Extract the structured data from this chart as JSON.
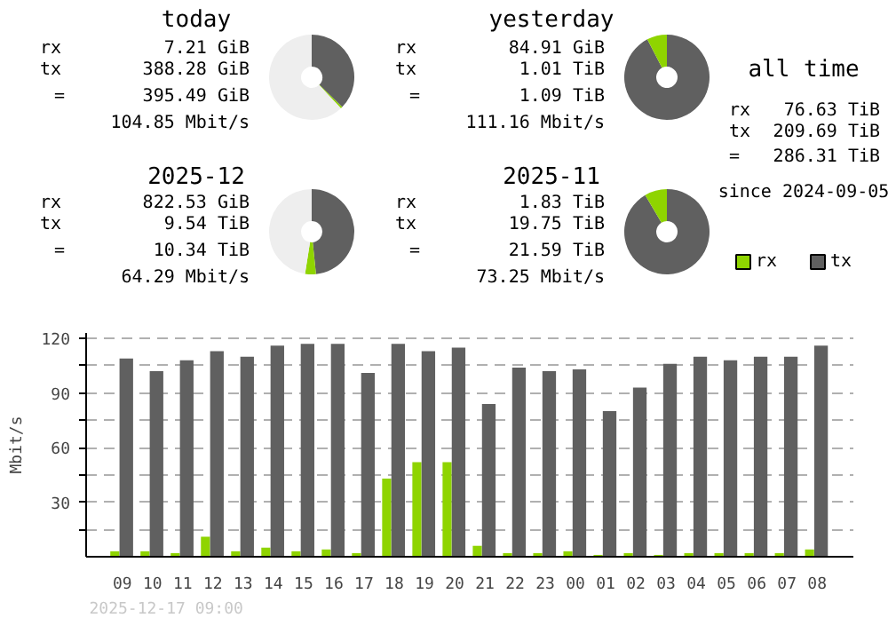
{
  "chart_data": [
    {
      "type": "donut",
      "title": "today",
      "categories": [
        null,
        null,
        null
      ],
      "values": [
        37.3,
        0.7,
        62.0
      ],
      "colors": [
        "#606060",
        "#8fd400",
        "#eeeeee"
      ],
      "annotations": [
        "rx",
        "7.21 GiB",
        "tx",
        "388.28 GiB",
        "=",
        "395.49 GiB",
        "104.85 Mbit/s"
      ]
    },
    {
      "type": "donut",
      "title": "yesterday",
      "categories": [
        null,
        null
      ],
      "values": [
        92.4,
        7.6
      ],
      "colors": [
        "#606060",
        "#8fd400"
      ],
      "annotations": [
        "rx",
        "84.91 GiB",
        "tx",
        "1.01 TiB",
        "=",
        "1.09 TiB",
        "111.16 Mbit/s"
      ]
    },
    {
      "type": "other",
      "title": "all time",
      "annotations": [
        "rx",
        "76.63 TiB",
        "tx",
        "209.69 TiB",
        "=",
        "286.31 TiB",
        "since 2024-09-05"
      ]
    },
    {
      "type": "donut",
      "title": "2025-12",
      "categories": [
        null,
        null,
        null
      ],
      "values": [
        48.4,
        4.1,
        47.5
      ],
      "colors": [
        "#606060",
        "#8fd400",
        "#eeeeee"
      ],
      "annotations": [
        "rx",
        "822.53 GiB",
        "tx",
        "9.54 TiB",
        "=",
        "10.34 TiB",
        "64.29 Mbit/s"
      ]
    },
    {
      "type": "donut",
      "title": "2025-11",
      "categories": [
        null,
        null
      ],
      "values": [
        91.5,
        8.5
      ],
      "colors": [
        "#606060",
        "#8fd400"
      ],
      "annotations": [
        "rx",
        "1.83 TiB",
        "tx",
        "19.75 TiB",
        "=",
        "21.59 TiB",
        "73.25 Mbit/s"
      ]
    },
    {
      "type": "bar",
      "ylabel": "Mbit/s",
      "categories": [
        "09",
        "10",
        "11",
        "12",
        "13",
        "14",
        "15",
        "16",
        "17",
        "18",
        "19",
        "20",
        "21",
        "22",
        "23",
        "00",
        "01",
        "02",
        "03",
        "04",
        "05",
        "06",
        "07",
        "08"
      ],
      "series": [
        {
          "name": "rx",
          "color": "#8fd400",
          "values": [
            3,
            3,
            2,
            11,
            3,
            5,
            3,
            4,
            2,
            43,
            52,
            52,
            6,
            2,
            2,
            3,
            1,
            2,
            1,
            2,
            2,
            2,
            2,
            4
          ]
        },
        {
          "name": "tx",
          "color": "#606060",
          "values": [
            109,
            102,
            108,
            113,
            110,
            116,
            117,
            117,
            101,
            117,
            113,
            115,
            84,
            104,
            102,
            103,
            80,
            93,
            106,
            110,
            108,
            110,
            110,
            116
          ]
        }
      ],
      "ylim": [
        0,
        123
      ],
      "yticks": [
        {
          "value": 15,
          "label": null
        },
        30,
        {
          "value": 45,
          "label": null
        },
        60,
        {
          "value": 75,
          "label": null
        },
        90,
        {
          "value": 105,
          "label": null
        },
        120
      ],
      "grid": "y",
      "legend": "top right",
      "annotations": [
        "2025-12-17 09:00"
      ]
    }
  ]
}
